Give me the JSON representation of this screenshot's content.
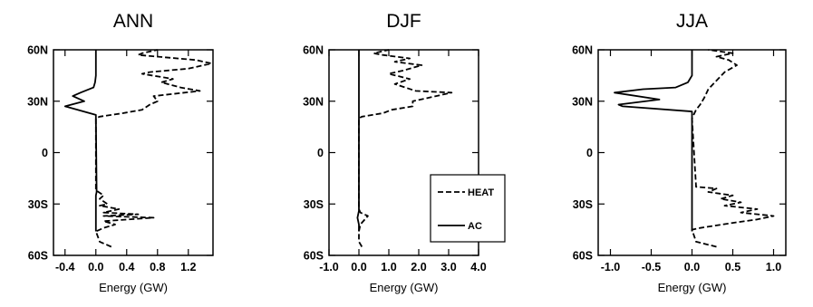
{
  "chart_data": [
    {
      "type": "line",
      "title": "ANN",
      "xlabel": "Energy (GW)",
      "ylabel": "",
      "xlim": [
        -0.55,
        1.52
      ],
      "ylim": [
        -60,
        60
      ],
      "xticks": [
        -0.4,
        0.0,
        0.4,
        0.8,
        1.2
      ],
      "xtick_labels": [
        "-0.4",
        "0.0",
        "0.4",
        "0.8",
        "1.2"
      ],
      "yticks": [
        60,
        30,
        0,
        -30,
        -60
      ],
      "ytick_labels": [
        "60N",
        "30N",
        "0",
        "30S",
        "60S"
      ],
      "legend": null,
      "series": [
        {
          "name": "HEAT",
          "style": "dashed",
          "points": [
            [
              0.2,
              -55
            ],
            [
              0.05,
              -52
            ],
            [
              0,
              -46
            ],
            [
              0.1,
              -44
            ],
            [
              0.25,
              -42
            ],
            [
              0.1,
              -40
            ],
            [
              0.75,
              -38
            ],
            [
              0.1,
              -37
            ],
            [
              0.55,
              -36
            ],
            [
              0.1,
              -35
            ],
            [
              0.3,
              -33
            ],
            [
              0.05,
              -31
            ],
            [
              0.15,
              -30
            ],
            [
              0.05,
              -27
            ],
            [
              0.1,
              -25
            ],
            [
              0,
              -22
            ],
            [
              0,
              20
            ],
            [
              0.05,
              21
            ],
            [
              0.35,
              23
            ],
            [
              0.6,
              25
            ],
            [
              0.7,
              28
            ],
            [
              0.8,
              30
            ],
            [
              0.75,
              33
            ],
            [
              1.35,
              36
            ],
            [
              1.1,
              38
            ],
            [
              0.85,
              41
            ],
            [
              1.0,
              43
            ],
            [
              0.6,
              46
            ],
            [
              0.7,
              47
            ],
            [
              1.2,
              49
            ],
            [
              1.5,
              52
            ],
            [
              1.3,
              54
            ],
            [
              0.55,
              57
            ],
            [
              0.6,
              58
            ],
            [
              0.8,
              60
            ]
          ]
        },
        {
          "name": "AC",
          "style": "solid",
          "points": [
            [
              0,
              -46
            ],
            [
              0,
              -25
            ],
            [
              0.01,
              -23
            ],
            [
              0.01,
              -22
            ],
            [
              0,
              20
            ],
            [
              0,
              22
            ],
            [
              -0.4,
              27
            ],
            [
              -0.15,
              30
            ],
            [
              -0.3,
              33
            ],
            [
              -0.2,
              35
            ],
            [
              -0.03,
              38
            ],
            [
              -0.01,
              41
            ],
            [
              0,
              45
            ],
            [
              0,
              60
            ]
          ]
        }
      ]
    },
    {
      "type": "line",
      "title": "DJF",
      "xlabel": "Energy (GW)",
      "ylabel": "",
      "xlim": [
        -1.0,
        4.0
      ],
      "ylim": [
        -60,
        60
      ],
      "xticks": [
        -1.0,
        0.0,
        1.0,
        2.0,
        3.0,
        4.0
      ],
      "xtick_labels": [
        "-1.0",
        "0.0",
        "1.0",
        "2.0",
        "3.0",
        "4.0"
      ],
      "yticks": [
        60,
        30,
        0,
        -30,
        -60
      ],
      "ytick_labels": [
        "60N",
        "30N",
        "0",
        "30S",
        "60S"
      ],
      "legend": "inside-lower-right",
      "series": [
        {
          "name": "HEAT",
          "style": "dashed",
          "points": [
            [
              0.1,
              -55
            ],
            [
              0,
              -52
            ],
            [
              0,
              -46
            ],
            [
              0.05,
              -42
            ],
            [
              0.3,
              -37
            ],
            [
              0.05,
              -35
            ],
            [
              0,
              -33
            ],
            [
              0,
              20
            ],
            [
              0.1,
              21
            ],
            [
              0.8,
              23
            ],
            [
              1.1,
              25
            ],
            [
              1.8,
              27
            ],
            [
              1.8,
              30
            ],
            [
              3.1,
              35
            ],
            [
              1.9,
              36
            ],
            [
              1.2,
              40
            ],
            [
              1.7,
              43
            ],
            [
              1.0,
              46
            ],
            [
              1.5,
              48
            ],
            [
              2.1,
              51
            ],
            [
              1.2,
              53
            ],
            [
              1.7,
              55
            ],
            [
              0.8,
              57
            ],
            [
              0.5,
              58
            ],
            [
              1.0,
              60
            ]
          ]
        },
        {
          "name": "AC",
          "style": "solid",
          "points": [
            [
              0,
              -46
            ],
            [
              0,
              -42
            ],
            [
              -0.05,
              -38
            ],
            [
              0,
              -34
            ],
            [
              0,
              60
            ]
          ]
        }
      ]
    },
    {
      "type": "line",
      "title": "JJA",
      "xlabel": "Energy (GW)",
      "ylabel": "",
      "xlim": [
        -1.15,
        1.15
      ],
      "ylim": [
        -60,
        60
      ],
      "xticks": [
        -1.0,
        -0.5,
        0.0,
        0.5,
        1.0
      ],
      "xtick_labels": [
        "-1.0",
        "-0.5",
        "0.0",
        "0.5",
        "1.0"
      ],
      "yticks": [
        60,
        30,
        0,
        -30,
        -60
      ],
      "ytick_labels": [
        "60N",
        "30N",
        "0",
        "30S",
        "60S"
      ],
      "legend": null,
      "series": [
        {
          "name": "HEAT",
          "style": "dashed",
          "points": [
            [
              0.3,
              -55
            ],
            [
              0.05,
              -52
            ],
            [
              0,
              -45
            ],
            [
              0.1,
              -44
            ],
            [
              0.5,
              -41
            ],
            [
              0.8,
              -39
            ],
            [
              1.0,
              -37
            ],
            [
              0.6,
              -35
            ],
            [
              0.8,
              -33
            ],
            [
              0.4,
              -31
            ],
            [
              0.6,
              -29
            ],
            [
              0.35,
              -27
            ],
            [
              0.5,
              -25
            ],
            [
              0.2,
              -23
            ],
            [
              0.3,
              -21
            ],
            [
              0.05,
              -20
            ],
            [
              0,
              20
            ],
            [
              0.05,
              25
            ],
            [
              0.1,
              28
            ],
            [
              0.15,
              32
            ],
            [
              0.2,
              37
            ],
            [
              0.3,
              42
            ],
            [
              0.4,
              47
            ],
            [
              0.55,
              51
            ],
            [
              0.45,
              54
            ],
            [
              0.3,
              56
            ],
            [
              0.5,
              58
            ],
            [
              0.2,
              60
            ]
          ]
        },
        {
          "name": "AC",
          "style": "solid",
          "points": [
            [
              0,
              -46
            ],
            [
              0,
              24
            ],
            [
              -0.85,
              27
            ],
            [
              -0.9,
              28
            ],
            [
              -0.4,
              31
            ],
            [
              -0.95,
              35
            ],
            [
              -0.6,
              37
            ],
            [
              -0.2,
              38
            ],
            [
              -0.05,
              41
            ],
            [
              0,
              45
            ],
            [
              0,
              60
            ]
          ]
        }
      ]
    }
  ]
}
